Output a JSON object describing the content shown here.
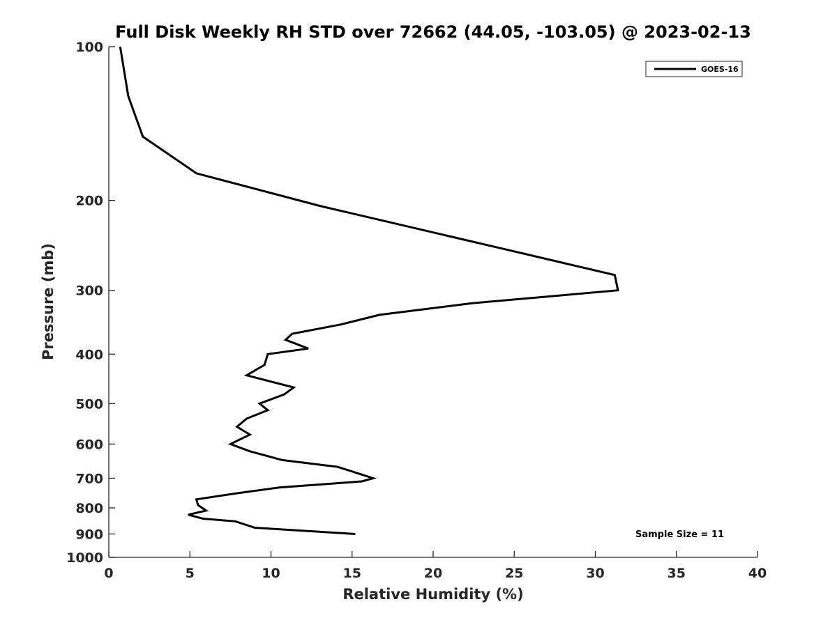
{
  "chart_data": {
    "type": "line",
    "title": "Full Disk Weekly RH STD over 72662 (44.05, -103.05) @ 2023-02-13",
    "xlabel": "Relative Humidity (%)",
    "ylabel": "Pressure (mb)",
    "xlim": [
      0,
      40
    ],
    "ylim": [
      100,
      1000
    ],
    "y_scale": "log",
    "y_reversed": true,
    "x_ticks": [
      "0",
      "5",
      "10",
      "15",
      "20",
      "25",
      "30",
      "35",
      "40"
    ],
    "y_ticks": [
      "100",
      "200",
      "300",
      "400",
      "500",
      "600",
      "700",
      "800",
      "900",
      "1000"
    ],
    "grid": false,
    "legend": "top-right",
    "annotation": "Sample Size = 11",
    "series": [
      {
        "name": "GOES-16",
        "color": "#000000",
        "points": [
          [
            0.7,
            100
          ],
          [
            1.2,
            125
          ],
          [
            2.1,
            150
          ],
          [
            5.4,
            177
          ],
          [
            13.0,
            205
          ],
          [
            24.6,
            250
          ],
          [
            31.2,
            280
          ],
          [
            31.4,
            300
          ],
          [
            22.4,
            318
          ],
          [
            16.7,
            335
          ],
          [
            14.3,
            350
          ],
          [
            11.3,
            365
          ],
          [
            10.9,
            375
          ],
          [
            12.3,
            390
          ],
          [
            9.8,
            400
          ],
          [
            9.6,
            420
          ],
          [
            8.5,
            440
          ],
          [
            11.4,
            465
          ],
          [
            10.8,
            480
          ],
          [
            9.3,
            500
          ],
          [
            9.8,
            515
          ],
          [
            8.5,
            535
          ],
          [
            7.9,
            555
          ],
          [
            8.7,
            575
          ],
          [
            7.5,
            600
          ],
          [
            8.7,
            620
          ],
          [
            10.7,
            645
          ],
          [
            14.1,
            665
          ],
          [
            15.7,
            690
          ],
          [
            16.3,
            700
          ],
          [
            15.6,
            710
          ],
          [
            10.5,
            730
          ],
          [
            7.8,
            750
          ],
          [
            5.4,
            770
          ],
          [
            5.5,
            790
          ],
          [
            6.0,
            810
          ],
          [
            4.9,
            825
          ],
          [
            5.8,
            840
          ],
          [
            7.8,
            850
          ],
          [
            9.0,
            875
          ],
          [
            15.2,
            900
          ]
        ]
      }
    ]
  }
}
